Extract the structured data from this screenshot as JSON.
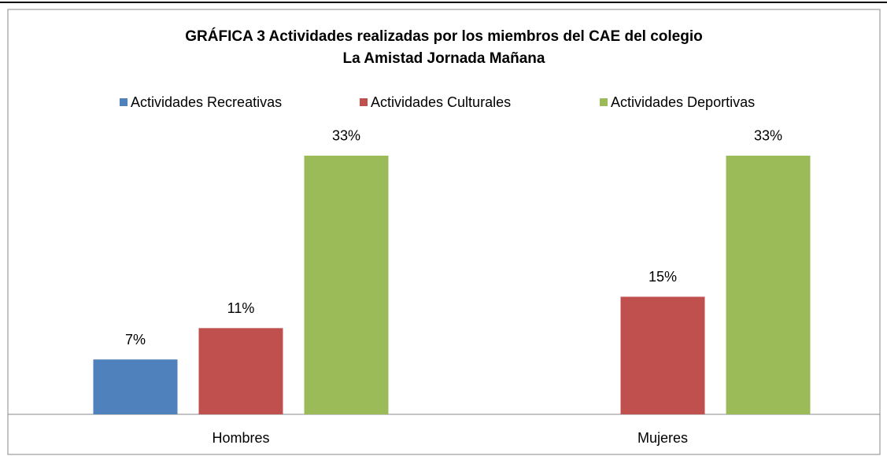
{
  "chart_data": {
    "type": "bar",
    "title": [
      "GRÁFICA 3 Actividades realizadas por los miembros del CAE del colegio",
      "La Amistad Jornada Mañana"
    ],
    "categories": [
      "Hombres",
      "Mujeres"
    ],
    "series": [
      {
        "name": "Actividades Recreativas",
        "color": "#4f81bd",
        "values": [
          7,
          null
        ],
        "value_labels": [
          "7%",
          null
        ]
      },
      {
        "name": "Actividades Culturales",
        "color": "#c0504d",
        "values": [
          11,
          15
        ],
        "value_labels": [
          "11%",
          "15%"
        ]
      },
      {
        "name": "Actividades Deportivas",
        "color": "#9bbb59",
        "values": [
          33,
          33
        ],
        "value_labels": [
          "33%",
          "33%"
        ]
      }
    ],
    "legend": "top",
    "grid": false
  }
}
